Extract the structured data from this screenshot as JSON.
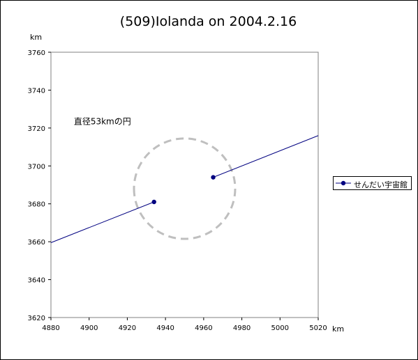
{
  "chart_data": {
    "type": "scatter",
    "title": "(509)Iolanda on 2004.2.16",
    "xlabel": "km",
    "ylabel": "km",
    "xlim": [
      4880,
      5020
    ],
    "ylim": [
      3620,
      3760
    ],
    "xticks": [
      4880,
      4900,
      4920,
      4940,
      4960,
      4980,
      5000,
      5020
    ],
    "yticks": [
      3620,
      3640,
      3660,
      3680,
      3700,
      3720,
      3740,
      3760
    ],
    "series": [
      {
        "name": "せんだい宇宙館",
        "color": "#000080",
        "points": [
          [
            4934,
            3681
          ],
          [
            4965,
            3694
          ]
        ],
        "line_left": [
          [
            4880,
            3659.5
          ],
          [
            4934,
            3681
          ]
        ],
        "line_right": [
          [
            4965,
            3694
          ],
          [
            5020,
            3716
          ]
        ]
      }
    ],
    "circle": {
      "center": [
        4950,
        3688
      ],
      "diameter": 53,
      "color": "#bfbfbf"
    },
    "annotation": {
      "text": "直径53kmの円",
      "x": 4892,
      "y": 3722
    },
    "grid": false,
    "legend": "right"
  }
}
